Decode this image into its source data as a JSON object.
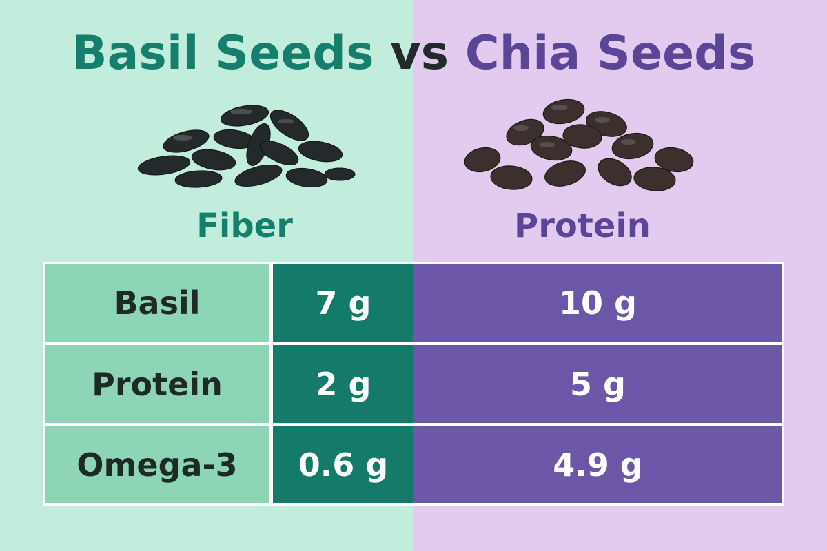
{
  "title": {
    "basil": "Basil Seeds",
    "vs": "vs",
    "chia": "Chia Seeds"
  },
  "subheads": {
    "left": "Fiber",
    "right": "Protein"
  },
  "table": {
    "rows": [
      {
        "label": "Basil",
        "basil_value": "7 g",
        "chia_value": "10 g"
      },
      {
        "label": "Protein",
        "basil_value": "2 g",
        "chia_value": "5 g"
      },
      {
        "label": "Omega-3",
        "basil_value": "0.6 g",
        "chia_value": "4.9 g"
      }
    ]
  },
  "colors": {
    "basil_accent": "#167e6c",
    "chia_accent": "#5b4596",
    "left_background": "#c2eddc",
    "right_background": "#e2cbee"
  },
  "icons": {
    "left": "basil-seeds-pile-icon",
    "right": "chia-seeds-pile-icon"
  }
}
